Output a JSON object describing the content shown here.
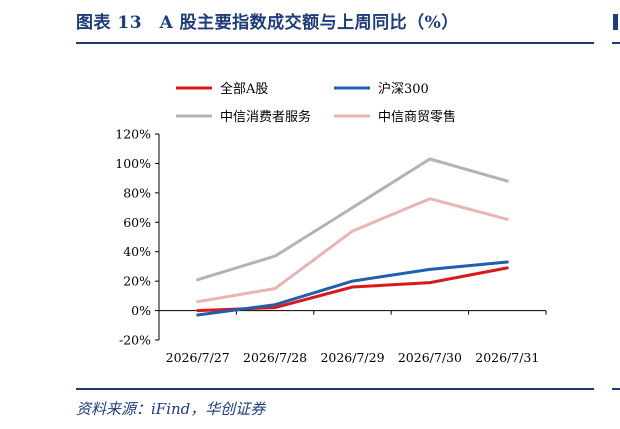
{
  "header": {
    "title": "图表 13　A 股主要指数成交额与上周同比（%）"
  },
  "footer": {
    "source": "资料来源：iFind，华创证券"
  },
  "chart_data": {
    "type": "line",
    "x": [
      "2026/7/27",
      "2026/7/28",
      "2026/7/29",
      "2026/7/30",
      "2026/7/31"
    ],
    "yticks": [
      "120%",
      "100%",
      "80%",
      "60%",
      "40%",
      "20%",
      "0%",
      "-20%"
    ],
    "ylim": [
      -20,
      120
    ],
    "ystep": 20,
    "grid": false,
    "legend_position": "top",
    "series": [
      {
        "name": "全部A股",
        "color": "#d7191c",
        "values": [
          0,
          2,
          16,
          19,
          29
        ]
      },
      {
        "name": "沪深300",
        "color": "#1f5fae",
        "values": [
          -3,
          4,
          20,
          28,
          33
        ]
      },
      {
        "name": "中信消费者服务",
        "color": "#b3b3b3",
        "values": [
          21,
          37,
          70,
          103,
          88
        ]
      },
      {
        "name": "中信商贸零售",
        "color": "#eab4b4",
        "values": [
          6,
          15,
          54,
          76,
          62
        ]
      }
    ]
  }
}
